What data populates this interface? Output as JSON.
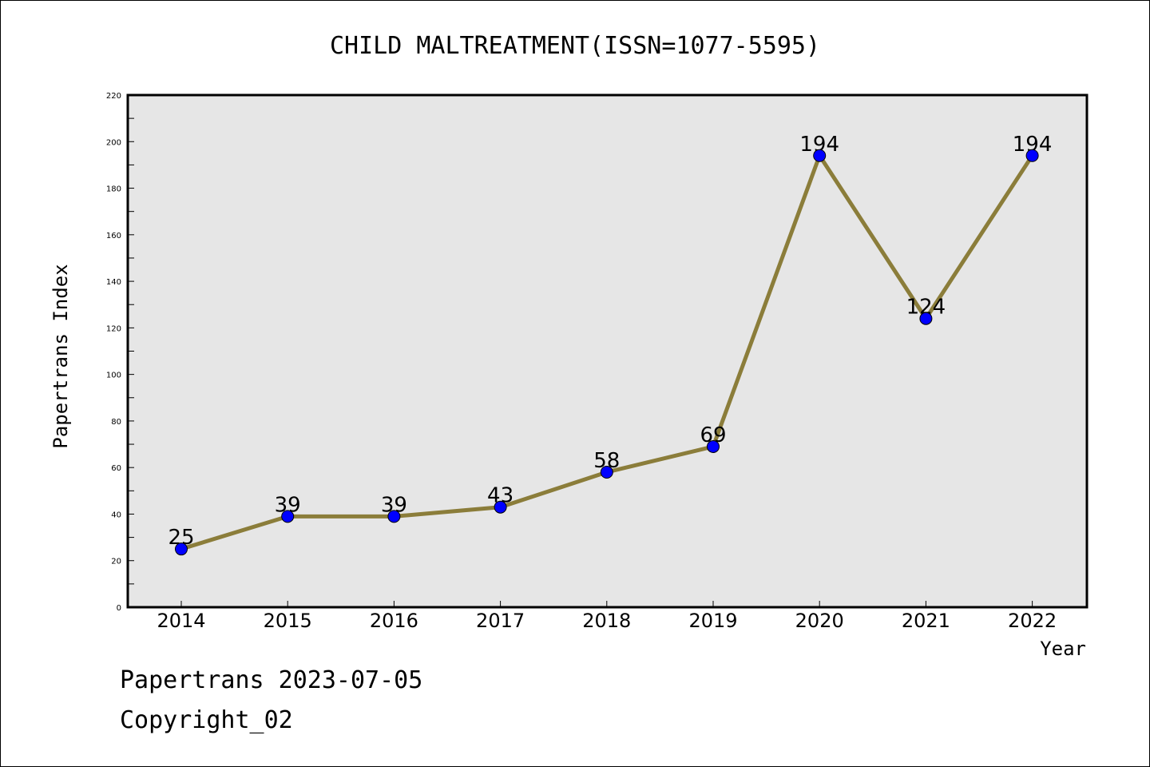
{
  "chart_data": {
    "type": "line",
    "title": "CHILD MALTREATMENT(ISSN=1077-5595)",
    "xlabel": "Year",
    "ylabel": "Papertrans Index",
    "categories": [
      "2014",
      "2015",
      "2016",
      "2017",
      "2018",
      "2019",
      "2020",
      "2021",
      "2022"
    ],
    "series": [
      {
        "values": [
          25,
          39,
          39,
          43,
          58,
          69,
          194,
          124,
          194
        ]
      }
    ],
    "data_labels": [
      "25",
      "39",
      "39",
      "43",
      "58",
      "69",
      "194",
      "124",
      "194"
    ],
    "yticks": [
      "0",
      "20",
      "40",
      "60",
      "80",
      "100",
      "120",
      "140",
      "160",
      "180",
      "200",
      "220"
    ],
    "ylim": [
      0,
      220
    ],
    "grid": false,
    "legend": "none",
    "colors": {
      "line": "#8B7D3A",
      "marker": "#0000FF",
      "plot_background": "#E6E6E6"
    }
  },
  "footer": {
    "date_text": "Papertrans 2023-07-05",
    "copyright_text": "Copyright_02"
  }
}
